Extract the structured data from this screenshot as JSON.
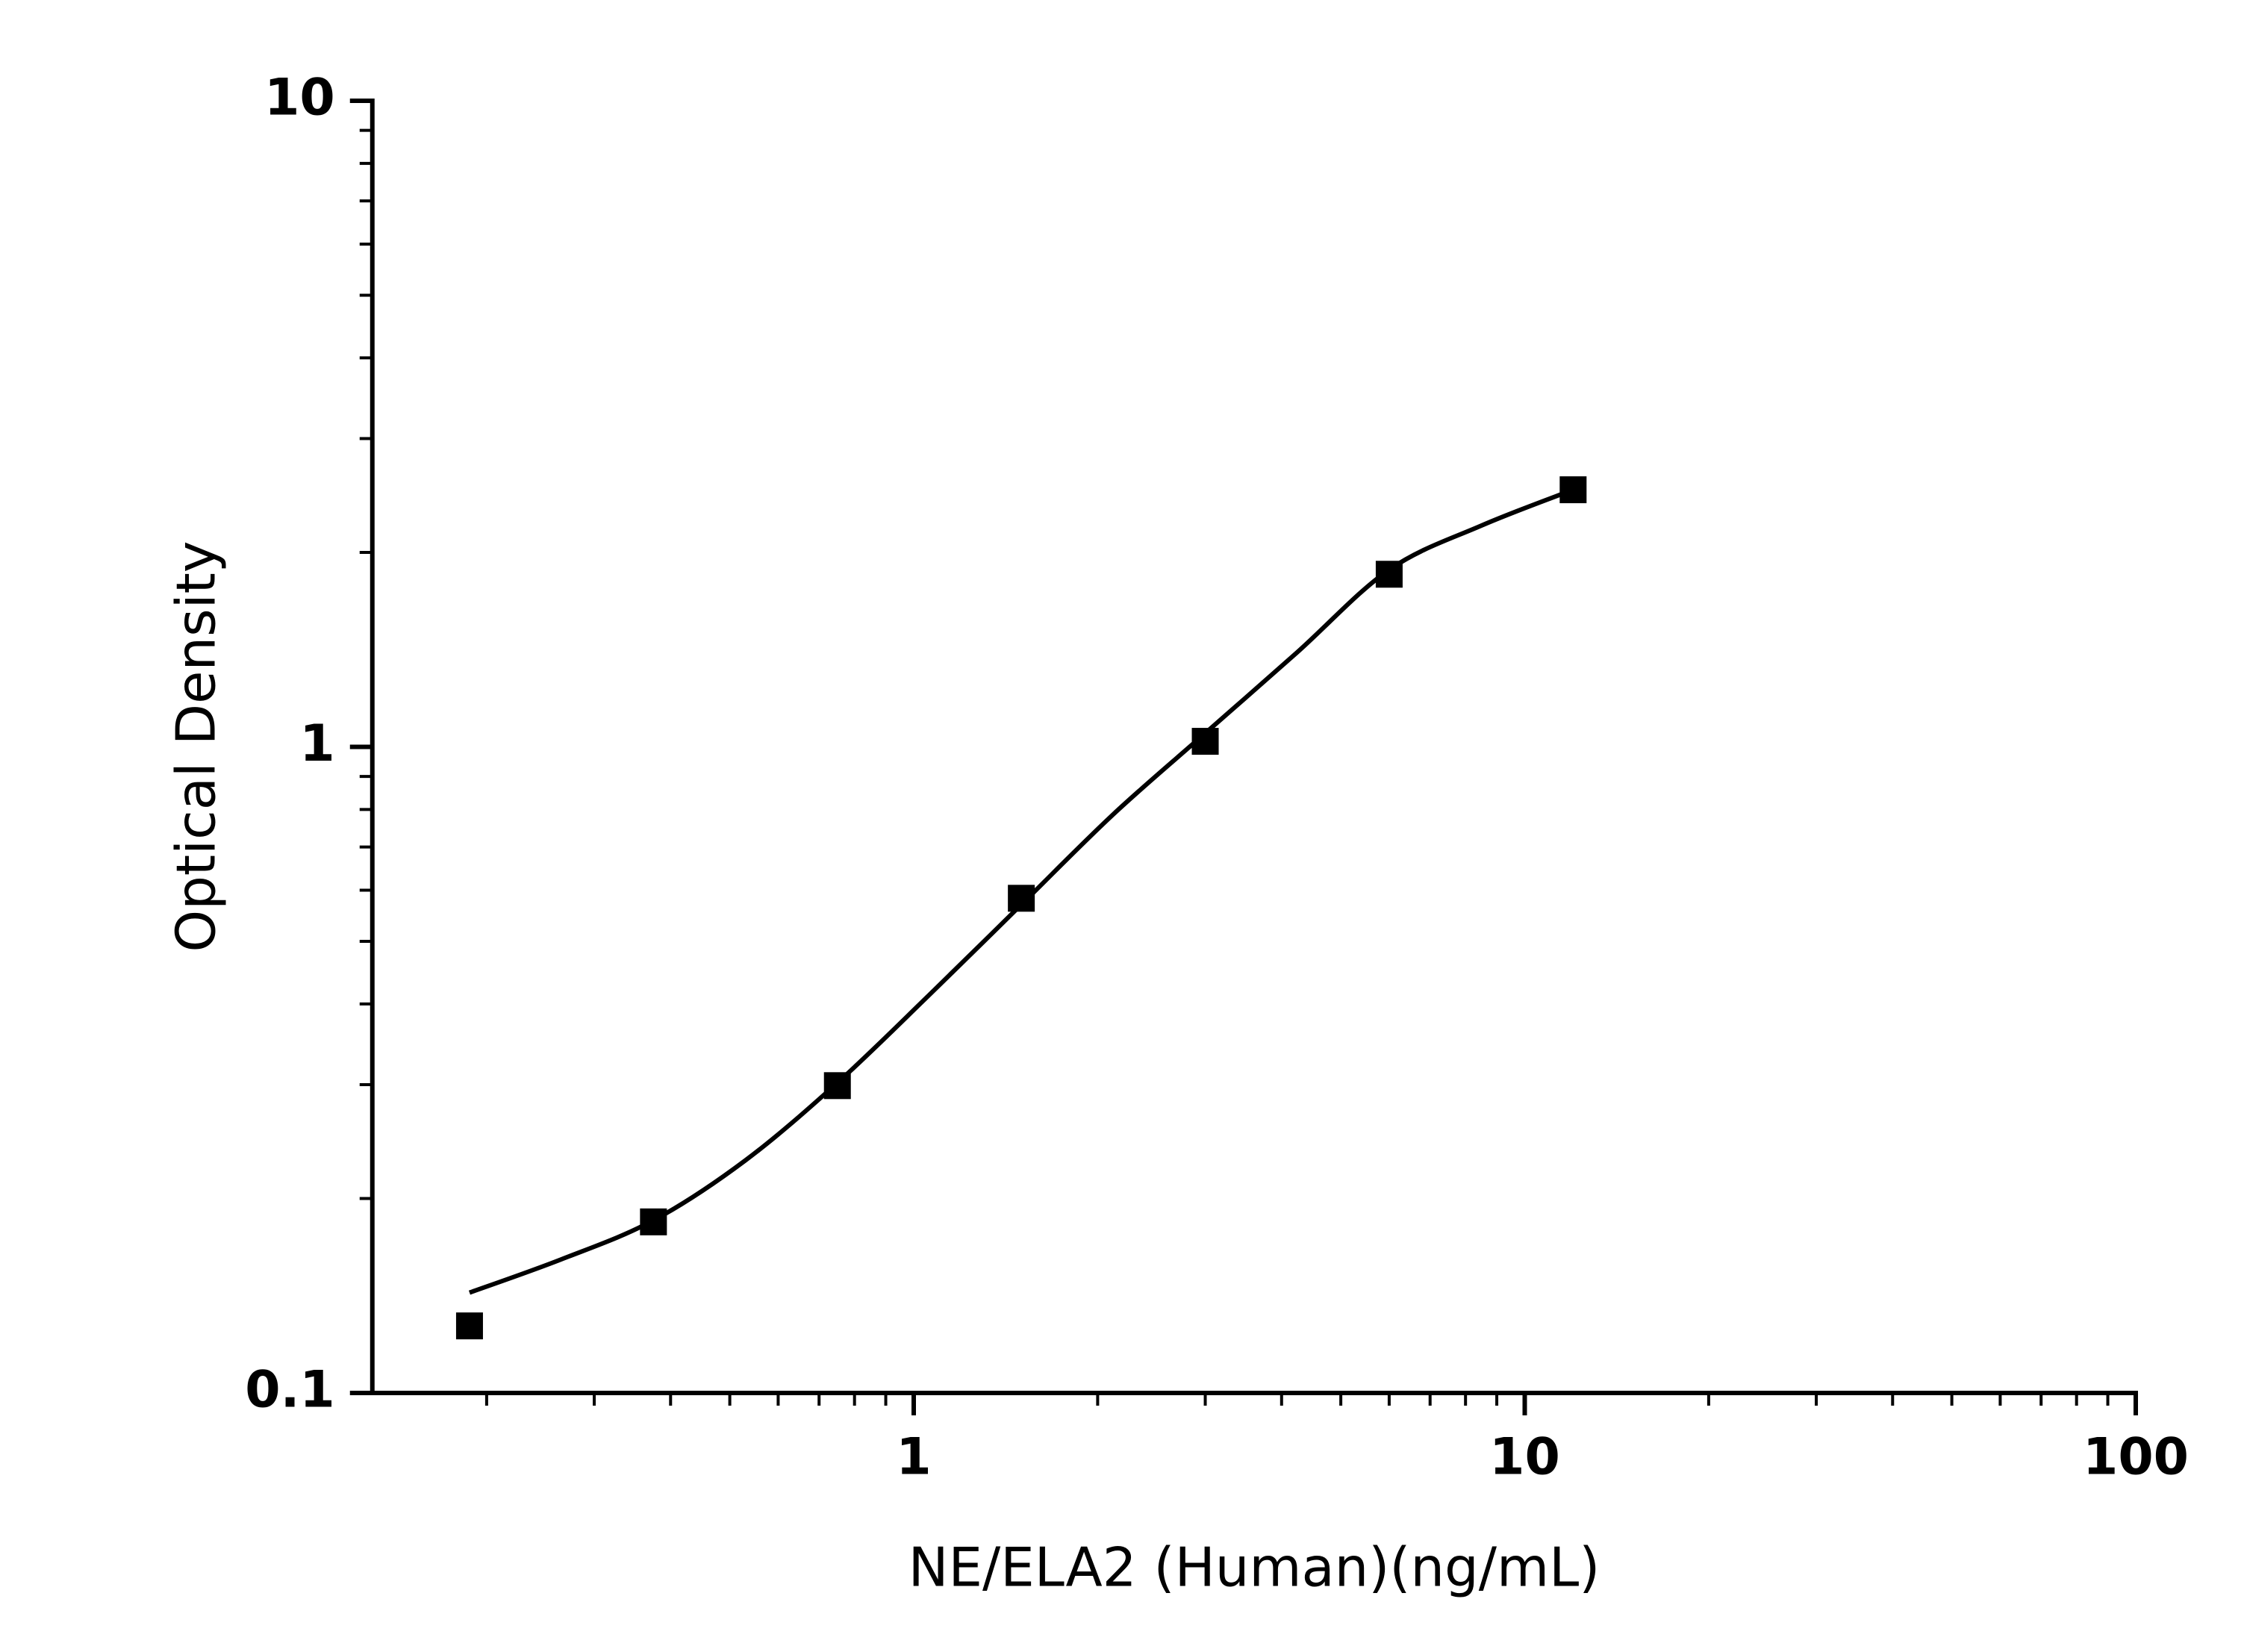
{
  "chart_data": {
    "type": "scatter",
    "x_label": "NE/ELA2 (Human)(ng/mL)",
    "y_label": "Optical Density",
    "x_log": true,
    "y_log": true,
    "xlim": [
      0.13,
      100
    ],
    "ylim": [
      0.1,
      10
    ],
    "xticks": [
      1,
      10,
      100
    ],
    "yticks": [
      0.1,
      1,
      10
    ],
    "xminorticks": [
      0.2,
      0.3,
      0.4,
      0.5,
      0.6,
      0.7,
      0.8,
      0.9,
      2,
      3,
      4,
      5,
      6,
      7,
      8,
      9,
      20,
      30,
      40,
      50,
      60,
      70,
      80,
      90
    ],
    "yminorticks": [
      0.2,
      0.3,
      0.4,
      0.5,
      0.6,
      0.7,
      0.8,
      0.9,
      2,
      3,
      4,
      5,
      6,
      7,
      8,
      9
    ],
    "series": [
      {
        "color": "#000000",
        "marker": "square",
        "x": [
          0.1875,
          0.375,
          0.75,
          1.5,
          3,
          6,
          12
        ],
        "values": [
          0.127,
          0.184,
          0.299,
          0.583,
          1.02,
          1.85,
          2.5
        ]
      },
      {
        "color": "#000000",
        "line": true,
        "x": [
          0.1875,
          0.265,
          0.375,
          0.53,
          0.75,
          1.06,
          1.5,
          2.12,
          3,
          4.24,
          6,
          8.49,
          12
        ],
        "values": [
          0.143,
          0.161,
          0.185,
          0.229,
          0.302,
          0.413,
          0.57,
          0.786,
          1.05,
          1.4,
          1.88,
          2.2,
          2.5
        ]
      }
    ]
  }
}
